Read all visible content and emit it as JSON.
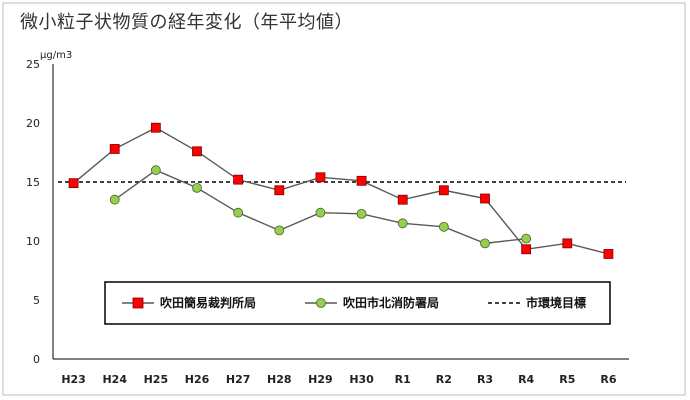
{
  "colors": {
    "series_1": "#ff0000",
    "series_1_line": "#595959",
    "series_2": "#92d050",
    "series_2_line": "#595959",
    "standard": "#000000",
    "axis": "#000000"
  },
  "chart_data": {
    "type": "line",
    "title": "微小粒子状物質の経年変化（年平均値）",
    "ylabel": "μg/m3",
    "xlabel": "",
    "ylim": [
      0,
      25
    ],
    "yticks": [
      0,
      5,
      10,
      15,
      20,
      25
    ],
    "grid": false,
    "legend_position": "bottom-center",
    "categories": [
      "H23",
      "H24",
      "H25",
      "H26",
      "H27",
      "H28",
      "H29",
      "H30",
      "R1",
      "R2",
      "R3",
      "R4",
      "R5",
      "R6"
    ],
    "series": [
      {
        "name": "吹田簡易裁判所局",
        "marker": "square",
        "values": [
          14.9,
          17.8,
          19.6,
          17.6,
          15.2,
          14.3,
          15.4,
          15.1,
          13.5,
          14.3,
          13.6,
          9.3,
          9.8,
          8.9
        ]
      },
      {
        "name": "吹田市北消防署局",
        "marker": "circle",
        "values": [
          null,
          13.5,
          16.0,
          14.5,
          12.4,
          10.9,
          12.4,
          12.3,
          11.5,
          11.2,
          9.8,
          10.2,
          null,
          null
        ]
      }
    ],
    "reference_line": {
      "name": "市環境目標",
      "value": 15
    }
  }
}
